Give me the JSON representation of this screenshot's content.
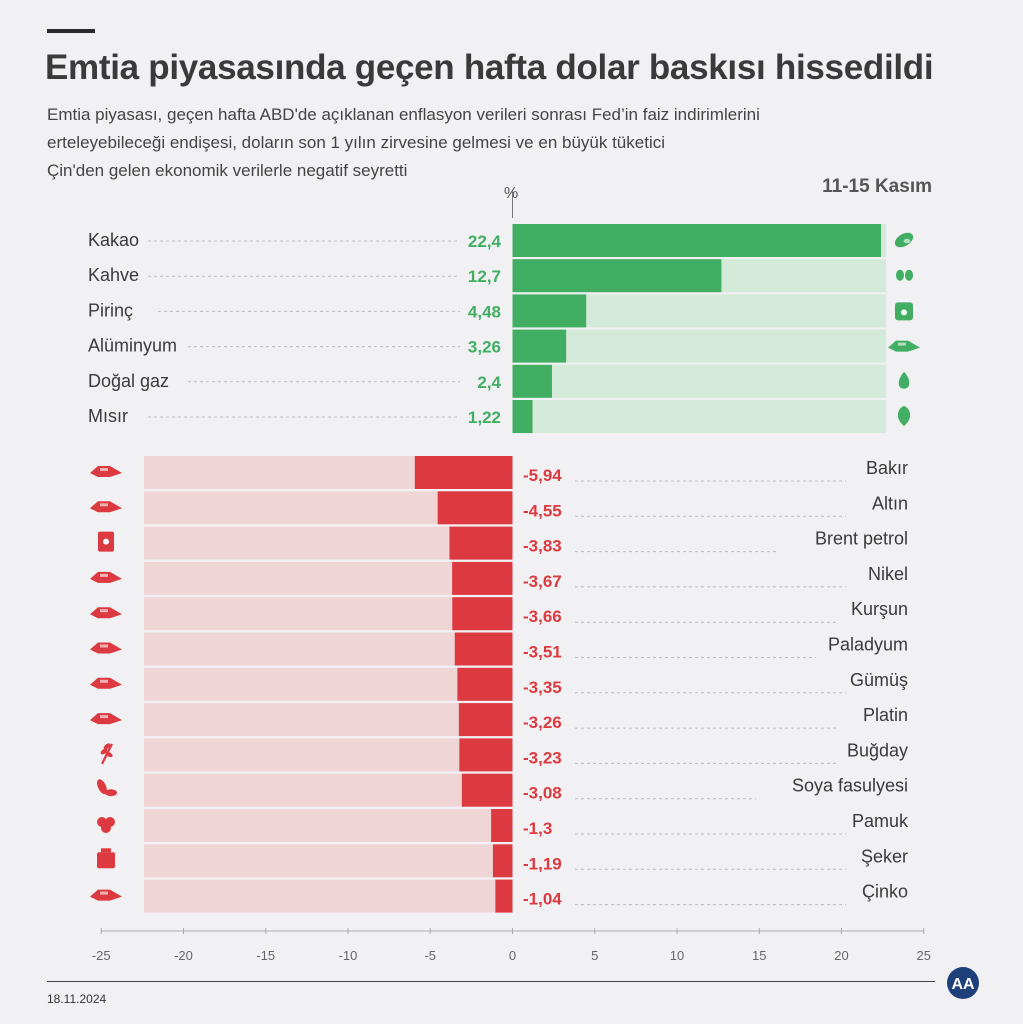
{
  "header": {
    "title": "Emtia piyasasında geçen hafta dolar baskısı hissedildi",
    "subtitle_lines": [
      "Emtia piyasası, geçen hafta ABD'de açıklanan enflasyon verileri sonrası Fed’in faiz indirimlerini",
      "erteleyebileceği endişesi, doların son 1 yılın zirvesine gelmesi ve en büyük tüketici",
      "Çin'den gelen ekonomik verilerle negatif seyretti"
    ],
    "period": "11-15 Kasım",
    "unit": "%"
  },
  "footer": {
    "date": "18.11.2024",
    "logo_text": "AA"
  },
  "colors": {
    "positive": "#41ae64",
    "positive_track": "#d3e9da",
    "negative": "#dc3a40",
    "negative_track": "#f0d5d7",
    "text": "#3a3a3a",
    "axis": "#777777"
  },
  "chart_data": {
    "type": "bar",
    "orientation": "horizontal",
    "xlim": [
      -25,
      25
    ],
    "xticks": [
      -25,
      -20,
      -15,
      -10,
      -5,
      0,
      5,
      10,
      15,
      20,
      25
    ],
    "positive": [
      {
        "label": "Kakao",
        "value": 22.4,
        "display": "22,4",
        "icon": "cocoa-icon"
      },
      {
        "label": "Kahve",
        "value": 12.7,
        "display": "12,7",
        "icon": "coffee-bean-icon"
      },
      {
        "label": "Pirinç",
        "value": 4.48,
        "display": "4,48",
        "icon": "rice-sack-icon"
      },
      {
        "label": "Alüminyum",
        "value": 3.26,
        "display": "3,26",
        "icon": "metal-ingot-icon"
      },
      {
        "label": "Doğal gaz",
        "value": 2.4,
        "display": "2,4",
        "icon": "gas-flame-icon"
      },
      {
        "label": "Mısır",
        "value": 1.22,
        "display": "1,22",
        "icon": "corn-leaf-icon"
      }
    ],
    "negative": [
      {
        "label": "Bakır",
        "value": -5.94,
        "display": "-5,94",
        "icon": "metal-ingot-icon"
      },
      {
        "label": "Altın",
        "value": -4.55,
        "display": "-4,55",
        "icon": "metal-ingot-icon"
      },
      {
        "label": "Brent petrol",
        "value": -3.83,
        "display": "-3,83",
        "icon": "oil-barrel-icon"
      },
      {
        "label": "Nikel",
        "value": -3.67,
        "display": "-3,67",
        "icon": "metal-ingot-icon"
      },
      {
        "label": "Kurşun",
        "value": -3.66,
        "display": "-3,66",
        "icon": "metal-ingot-icon"
      },
      {
        "label": "Paladyum",
        "value": -3.51,
        "display": "-3,51",
        "icon": "metal-ingot-icon"
      },
      {
        "label": "Gümüş",
        "value": -3.35,
        "display": "-3,35",
        "icon": "metal-ingot-icon"
      },
      {
        "label": "Platin",
        "value": -3.26,
        "display": "-3,26",
        "icon": "metal-ingot-icon"
      },
      {
        "label": "Buğday",
        "value": -3.23,
        "display": "-3,23",
        "icon": "wheat-icon"
      },
      {
        "label": "Soya fasulyesi",
        "value": -3.08,
        "display": "-3,08",
        "icon": "soybean-icon"
      },
      {
        "label": "Pamuk",
        "value": -1.3,
        "display": "-1,3",
        "icon": "cotton-icon"
      },
      {
        "label": "Şeker",
        "value": -1.19,
        "display": "-1,19",
        "icon": "sugar-sack-icon"
      },
      {
        "label": "Çinko",
        "value": -1.04,
        "display": "-1,04",
        "icon": "metal-ingot-icon"
      }
    ]
  }
}
